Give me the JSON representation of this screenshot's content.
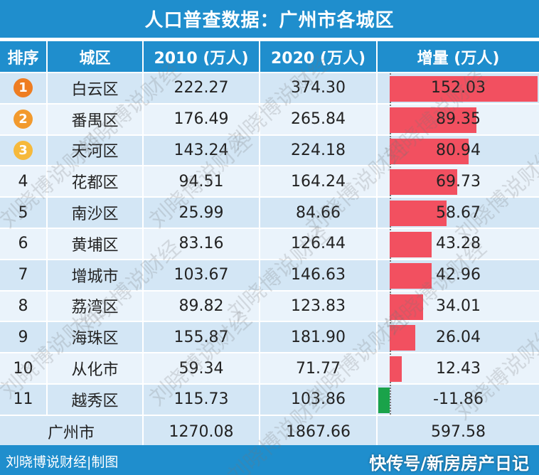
{
  "title": "人口普查数据：广州市各城区",
  "columns": {
    "rank": "排序",
    "district": "城区",
    "y2010": "2010 (万人)",
    "y2020": "2020 (万人)",
    "increase": "增量 (万人)"
  },
  "chart_data": {
    "type": "table",
    "x_axis_min": 0,
    "x_axis_max": 152.03,
    "rows": [
      {
        "rank": "1",
        "district": "白云区",
        "y2010": "222.27",
        "y2020": "374.30",
        "increase": 152.03
      },
      {
        "rank": "2",
        "district": "番禺区",
        "y2010": "176.49",
        "y2020": "265.84",
        "increase": 89.35
      },
      {
        "rank": "3",
        "district": "天河区",
        "y2010": "143.24",
        "y2020": "224.18",
        "increase": 80.94
      },
      {
        "rank": "4",
        "district": "花都区",
        "y2010": "94.51",
        "y2020": "164.24",
        "increase": 69.73
      },
      {
        "rank": "5",
        "district": "南沙区",
        "y2010": "25.99",
        "y2020": "84.66",
        "increase": 58.67
      },
      {
        "rank": "6",
        "district": "黄埔区",
        "y2010": "83.16",
        "y2020": "126.44",
        "increase": 43.28
      },
      {
        "rank": "7",
        "district": "增城市",
        "y2010": "103.67",
        "y2020": "146.63",
        "increase": 42.96
      },
      {
        "rank": "8",
        "district": "荔湾区",
        "y2010": "89.82",
        "y2020": "123.83",
        "increase": 34.01
      },
      {
        "rank": "9",
        "district": "海珠区",
        "y2010": "155.87",
        "y2020": "181.90",
        "increase": 26.04
      },
      {
        "rank": "10",
        "district": "从化市",
        "y2010": "59.34",
        "y2020": "71.77",
        "increase": 12.43
      },
      {
        "rank": "11",
        "district": "越秀区",
        "y2010": "115.73",
        "y2020": "103.86",
        "increase": -11.86
      }
    ],
    "total": {
      "label": "广州市",
      "y2010": "1270.08",
      "y2020": "1867.66",
      "increase": "597.58"
    }
  },
  "medal_colors": [
    "#ee7d22",
    "#f29a2e",
    "#f6b93b"
  ],
  "colors": {
    "header": "#1f8ecd",
    "positive_bar": "#f25060",
    "negative_bar": "#1aa34a"
  },
  "footer": {
    "credit": "刘晓博说财经|制图",
    "brand": "快传号/新房房产日记"
  },
  "watermark_text": "刘晓博说财经"
}
